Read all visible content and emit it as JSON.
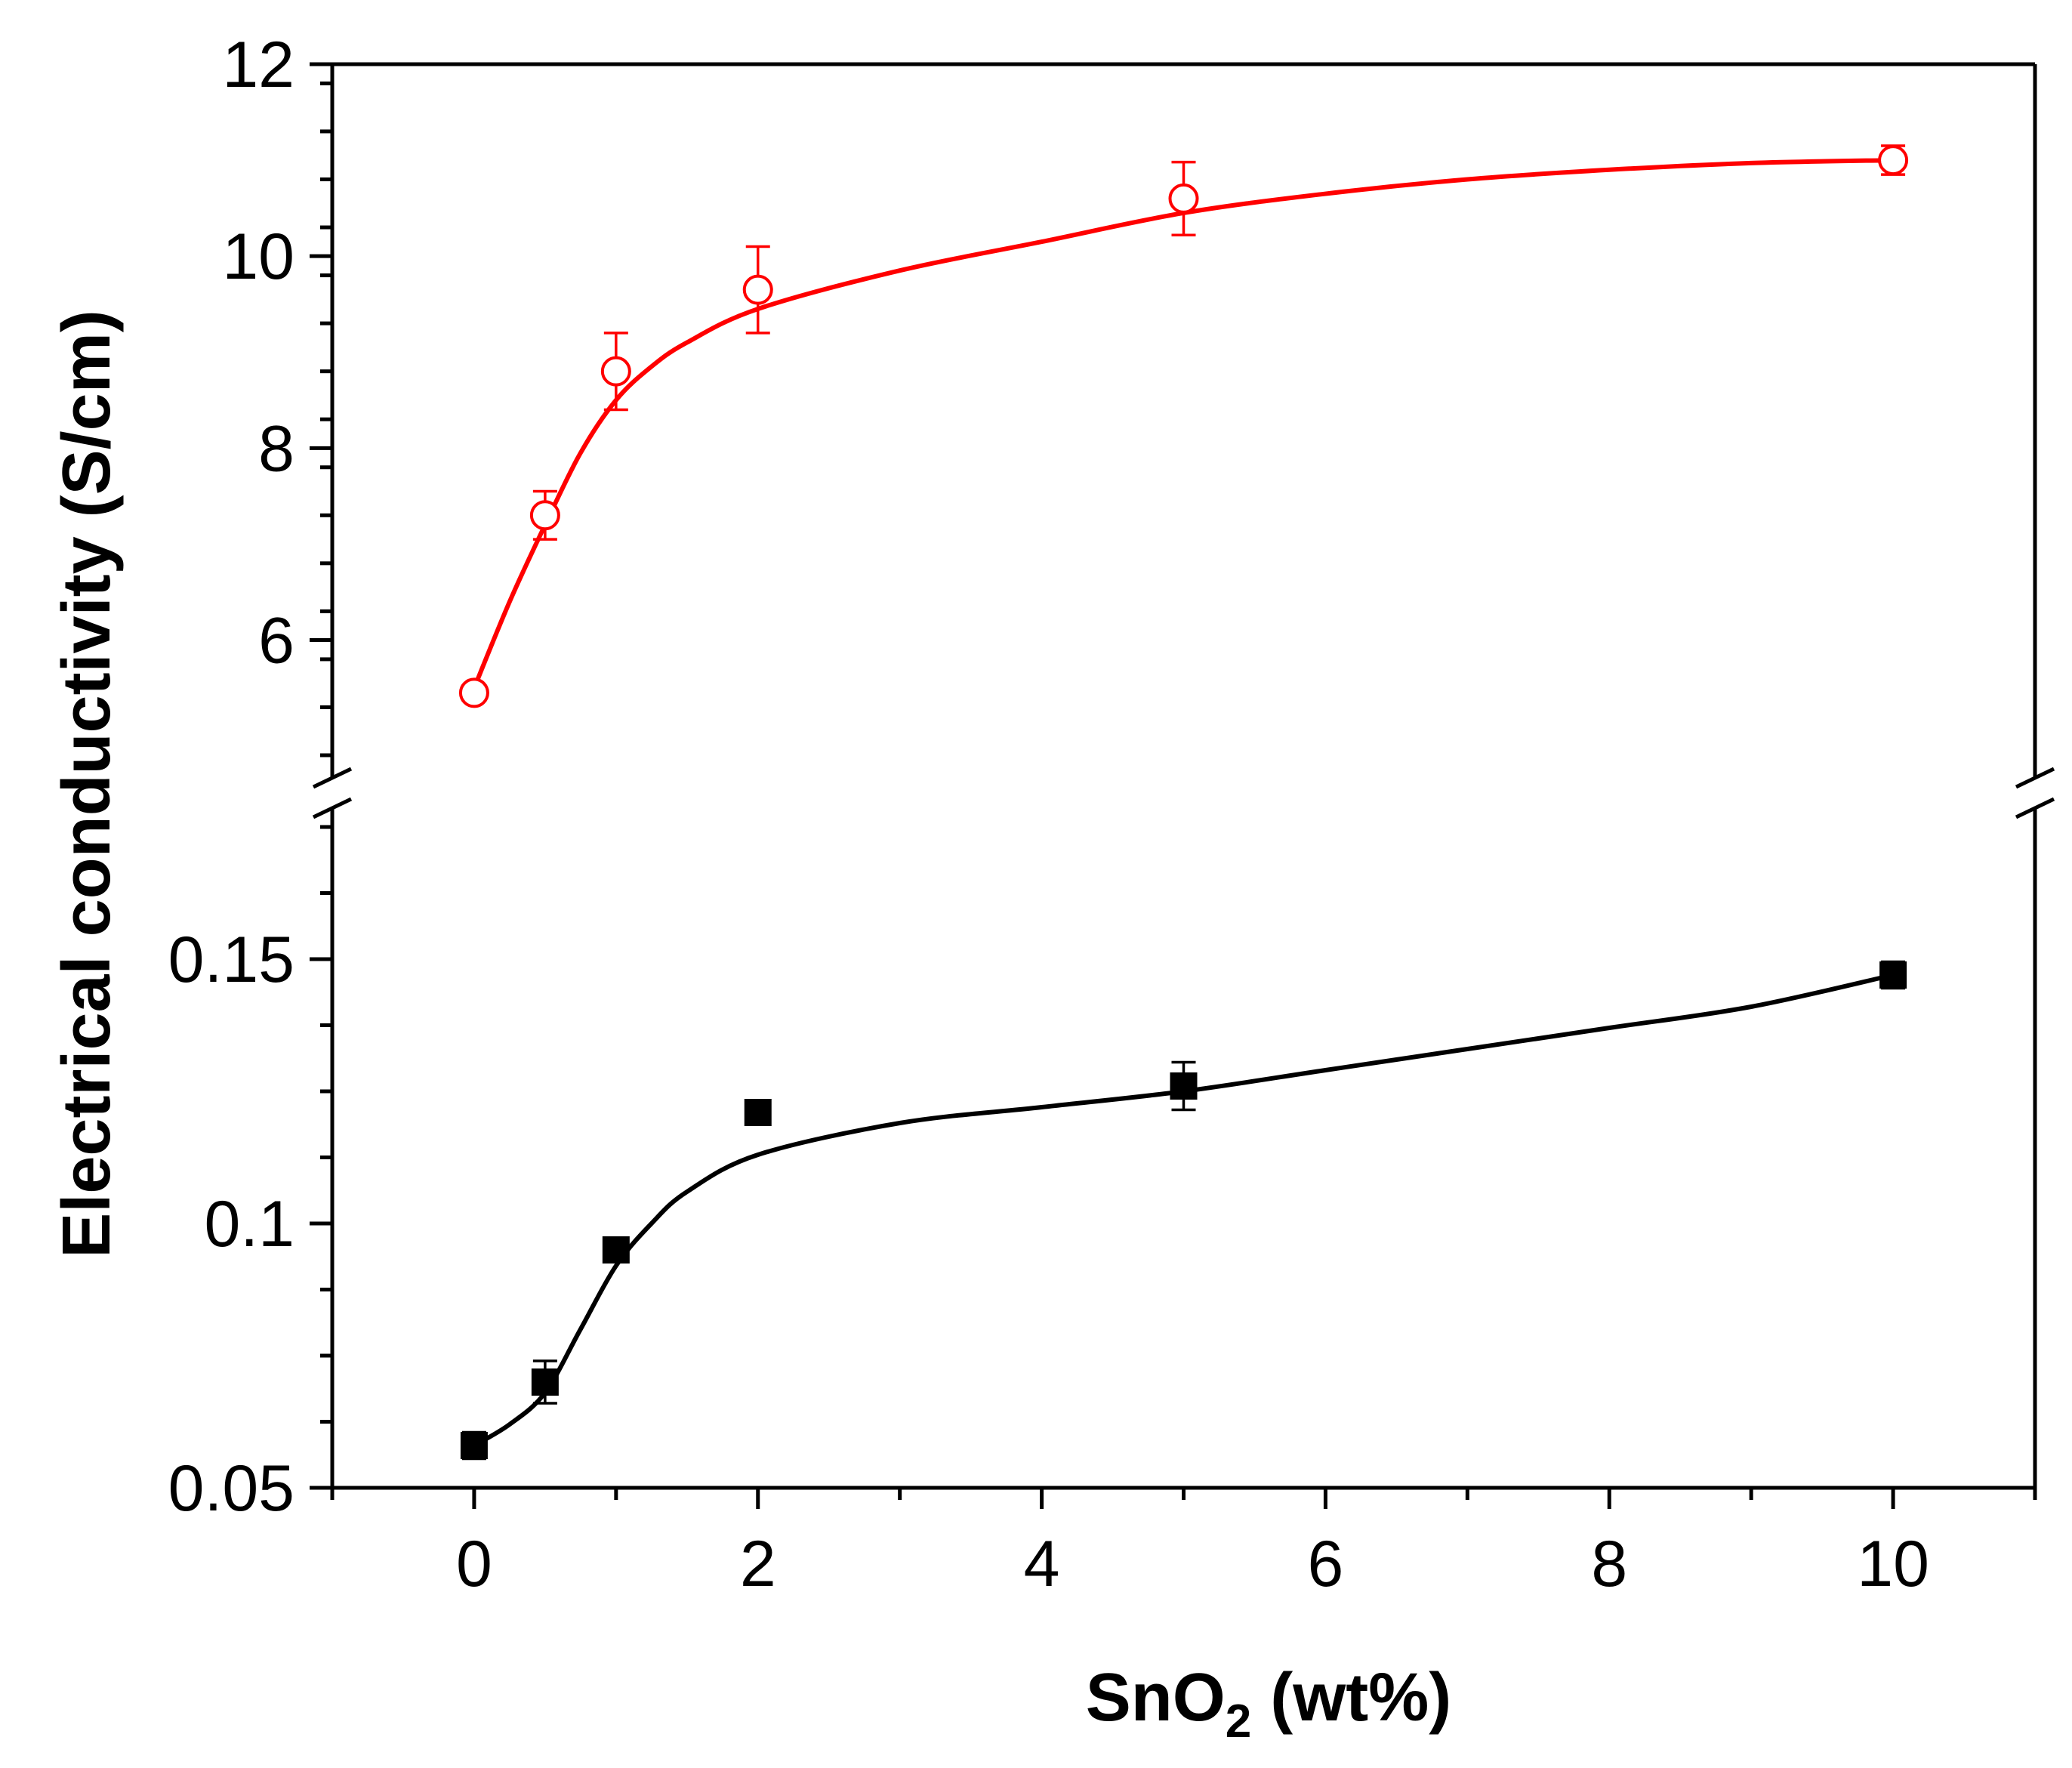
{
  "chart_data": {
    "type": "scatter",
    "title": "",
    "xlabel": {
      "main": "SnO",
      "subscript": "2",
      "suffix": " (wt%)"
    },
    "ylabel": "Electrical conductivity (S/cm)",
    "xlim": [
      -1,
      11
    ],
    "x_ticks": [
      0,
      2,
      4,
      6,
      8,
      10
    ],
    "x_tick_labels": [
      "0",
      "2",
      "4",
      "6",
      "8",
      "10"
    ],
    "broken_y_axis": true,
    "segments": [
      {
        "name": "upper",
        "ylim": [
          4.8,
          12
        ],
        "y_ticks": [
          6,
          8,
          10,
          12
        ],
        "y_tick_labels": [
          "6",
          "8",
          "10",
          "12"
        ]
      },
      {
        "name": "lower",
        "ylim": [
          0.05,
          0.18
        ],
        "y_ticks": [
          0.05,
          0.1,
          0.15
        ],
        "y_tick_labels": [
          "0.05",
          "0.1",
          "0.15"
        ]
      }
    ],
    "series": [
      {
        "name": "open-circle series",
        "segment": "upper",
        "color": "#ff0000",
        "marker": "open-circle",
        "x": [
          0,
          0.5,
          1,
          2,
          5,
          10
        ],
        "y": [
          5.45,
          7.3,
          8.8,
          9.65,
          10.6,
          11.0
        ],
        "yerr": [
          0.0,
          0.25,
          0.4,
          0.45,
          0.38,
          0.15
        ],
        "fit": [
          [
            0,
            5.5
          ],
          [
            0.25,
            6.4
          ],
          [
            0.5,
            7.2
          ],
          [
            0.75,
            7.95
          ],
          [
            1,
            8.5
          ],
          [
            1.25,
            8.85
          ],
          [
            1.5,
            9.1
          ],
          [
            2,
            9.45
          ],
          [
            3,
            9.85
          ],
          [
            4,
            10.15
          ],
          [
            5,
            10.45
          ],
          [
            6,
            10.65
          ],
          [
            7,
            10.8
          ],
          [
            8,
            10.9
          ],
          [
            9,
            10.97
          ],
          [
            10,
            11.0
          ]
        ]
      },
      {
        "name": "filled-square series",
        "segment": "lower",
        "color": "#000000",
        "marker": "filled-square",
        "x": [
          0,
          0.5,
          1,
          2,
          5,
          10
        ],
        "y": [
          0.058,
          0.07,
          0.095,
          0.121,
          0.126,
          0.147
        ],
        "yerr": [
          0.0025,
          0.004,
          0.0015,
          0.002,
          0.0045,
          0.0025
        ],
        "fit": [
          [
            0,
            0.058
          ],
          [
            0.25,
            0.062
          ],
          [
            0.5,
            0.068
          ],
          [
            0.75,
            0.08
          ],
          [
            1,
            0.092
          ],
          [
            1.25,
            0.1
          ],
          [
            1.5,
            0.106
          ],
          [
            2,
            0.113
          ],
          [
            3,
            0.119
          ],
          [
            4,
            0.122
          ],
          [
            5,
            0.125
          ],
          [
            6,
            0.129
          ],
          [
            7,
            0.133
          ],
          [
            8,
            0.137
          ],
          [
            9,
            0.141
          ],
          [
            10,
            0.147
          ]
        ]
      }
    ]
  }
}
